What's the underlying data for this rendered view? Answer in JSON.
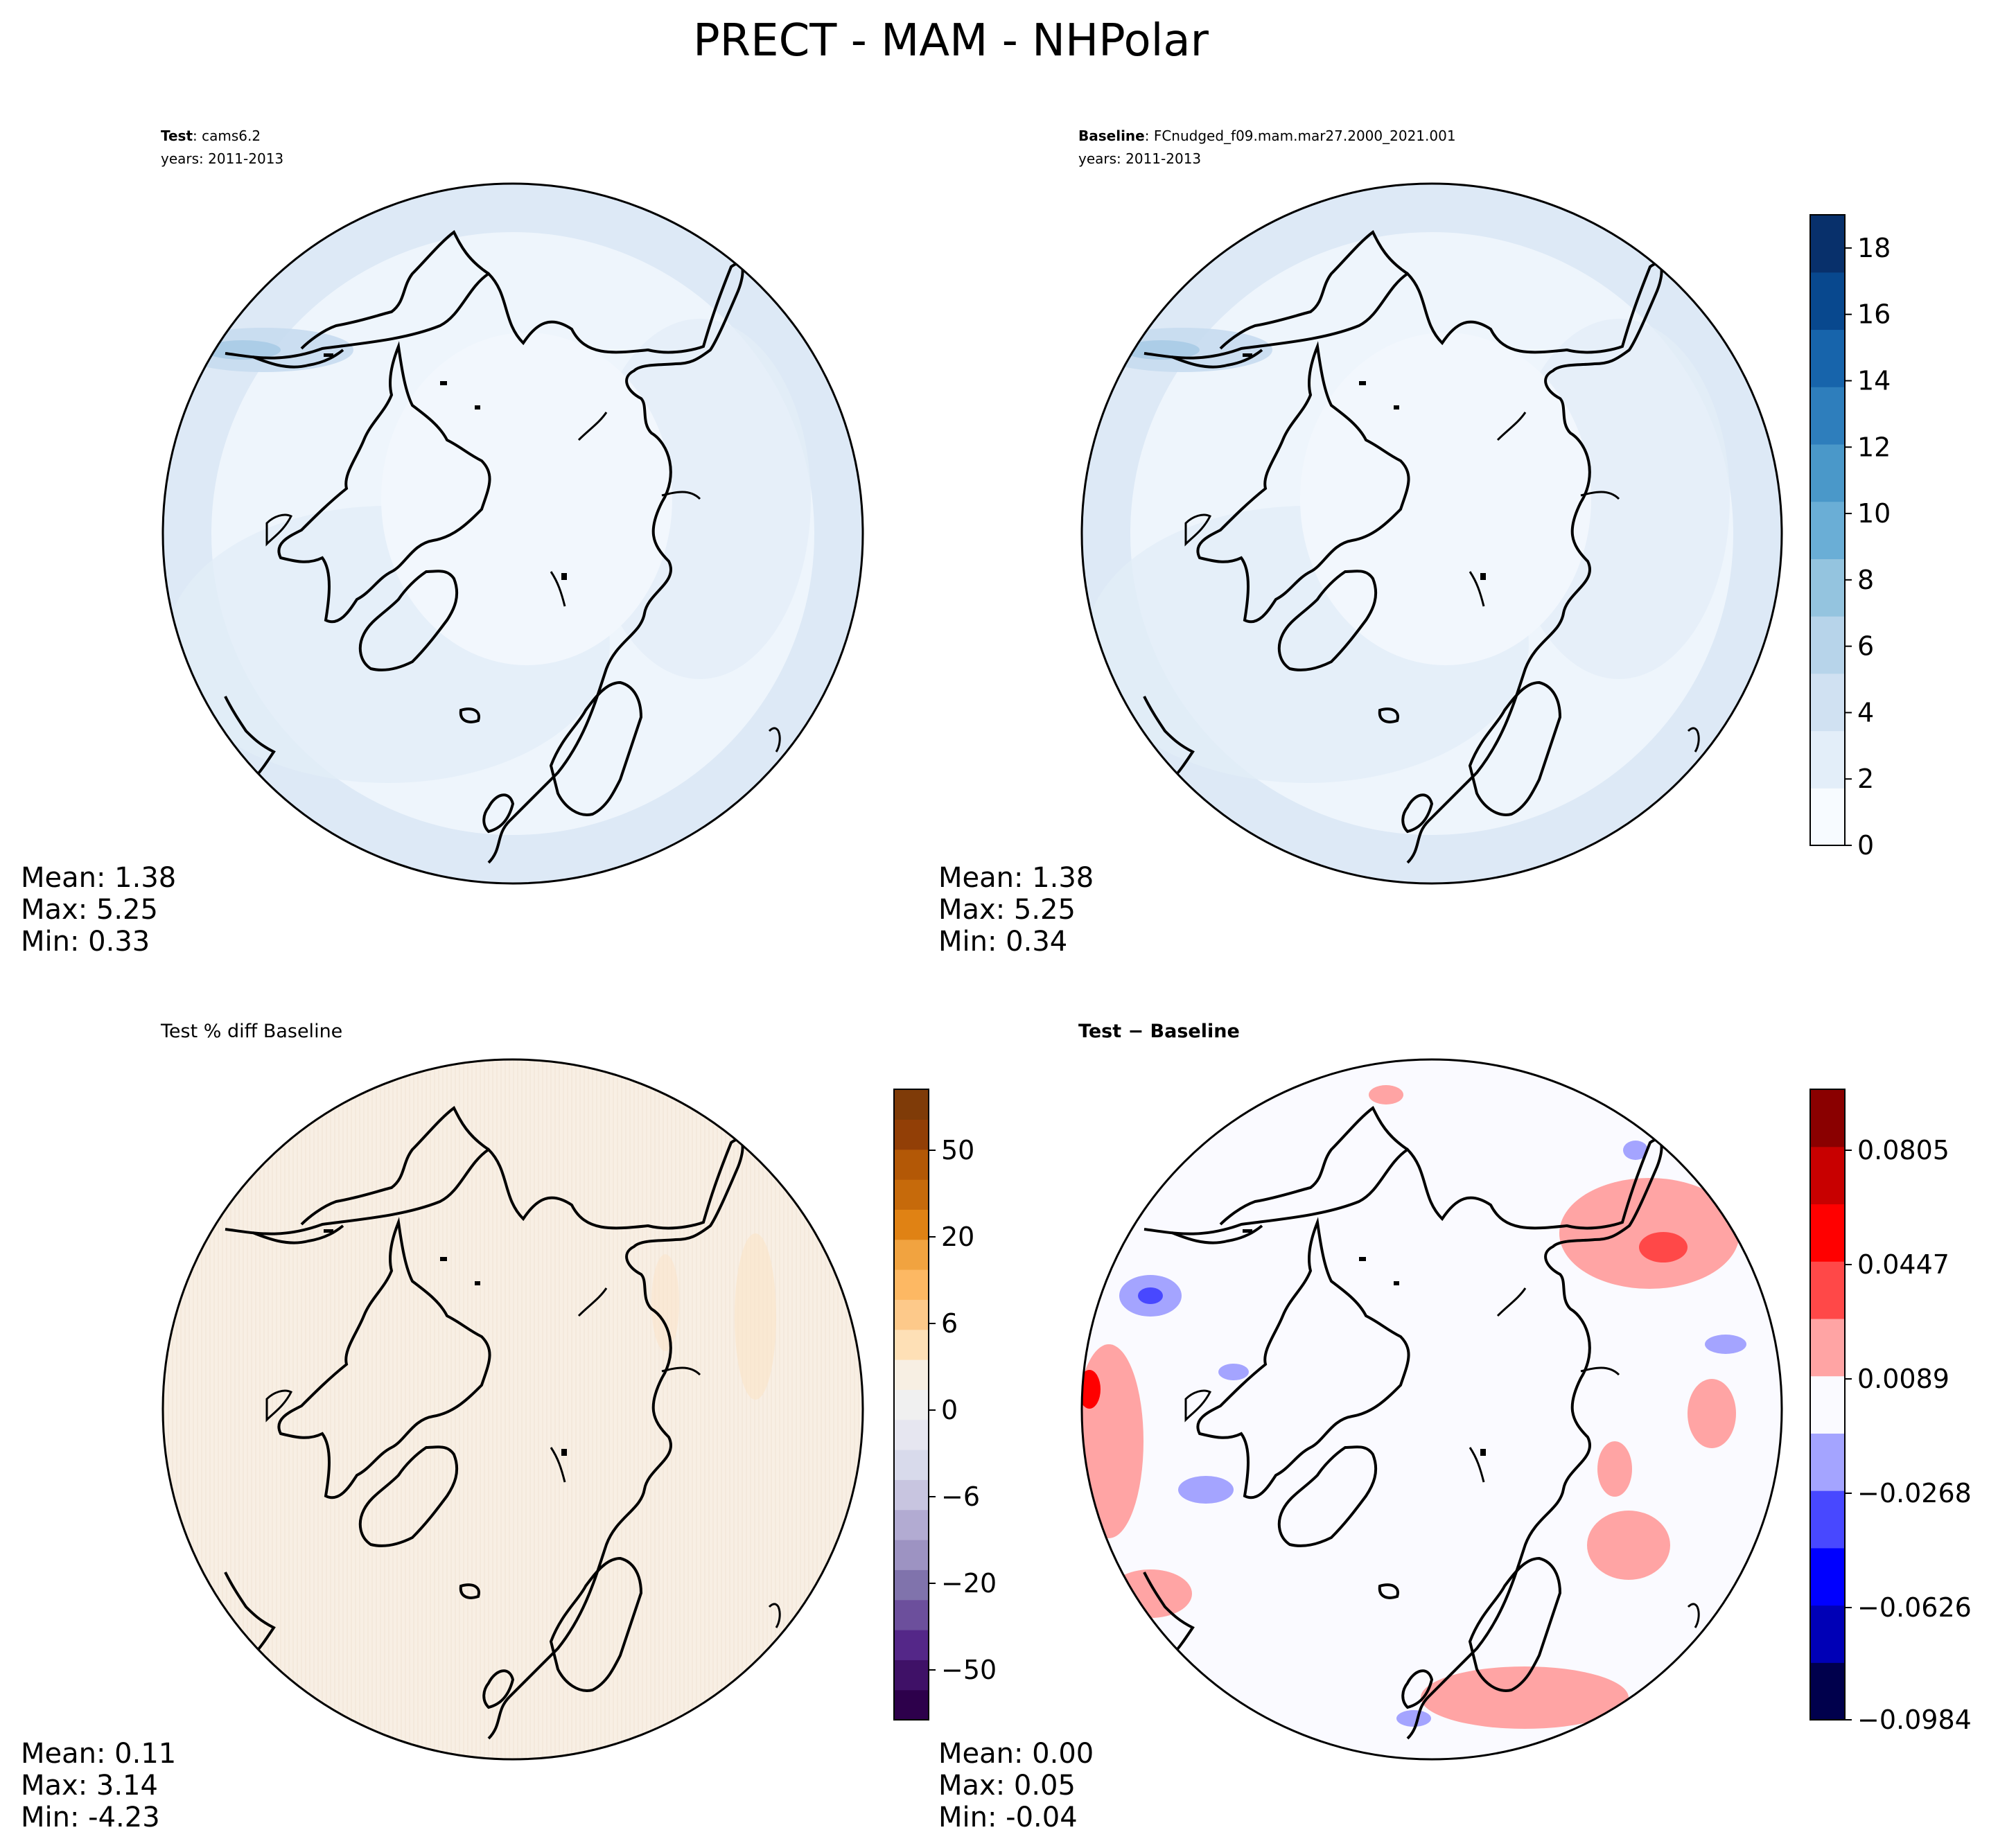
{
  "figure": {
    "title": "PRECT - MAM - NHPolar"
  },
  "panels": [
    {
      "id": "test",
      "label_bold": "Test",
      "label_rest": ": cams6.2",
      "years": "years: 2011-2013",
      "stats": {
        "mean": "Mean:  1.38",
        "max": "Max:  5.25",
        "min": "Min:  0.33"
      }
    },
    {
      "id": "baseline",
      "label_bold": "Baseline",
      "label_rest": ": FCnudged_f09.mam.mar27.2000_2021.001",
      "years": "years: 2011-2013",
      "stats": {
        "mean": "Mean:  1.38",
        "max": "Max:  5.25",
        "min": "Min:  0.34"
      }
    },
    {
      "id": "pctdiff",
      "title": "Test % diff Baseline",
      "stats": {
        "mean": "Mean:  0.11",
        "max": "Max:  3.14",
        "min": "Min: -4.23"
      }
    },
    {
      "id": "diff",
      "title": "Test − Baseline",
      "stats": {
        "mean": "Mean:  0.00",
        "max": "Max:  0.05",
        "min": "Min: -0.04"
      }
    }
  ],
  "colorbars": {
    "precip": {
      "ticks": [
        "0",
        "2",
        "4",
        "6",
        "8",
        "10",
        "12",
        "14",
        "16",
        "18"
      ],
      "tick_values": [
        0,
        2,
        4,
        6,
        8,
        10,
        12,
        14,
        16,
        18
      ],
      "range": [
        0,
        19
      ],
      "colors": [
        "#f7fbff",
        "#e3eef9",
        "#d0e1f2",
        "#b7d4ea",
        "#94c4df",
        "#6aaed6",
        "#4a98c9",
        "#2e7ebc",
        "#1764ab",
        "#08488e",
        "#08306b"
      ]
    },
    "pct": {
      "ticks": [
        "50",
        "20",
        "6",
        "0",
        "−6",
        "−20",
        "−50"
      ],
      "colors": [
        "#2d004b",
        "#3f1167",
        "#542788",
        "#6c4f9c",
        "#8073ac",
        "#9d93c2",
        "#b2abd2",
        "#c8c5e0",
        "#d8daeb",
        "#e6e6f0",
        "#f0f0f0",
        "#f7efe3",
        "#fee0b6",
        "#fdc98a",
        "#fdb863",
        "#f1a340",
        "#e08214",
        "#c66a0b",
        "#b35806",
        "#923f06",
        "#7f3b08"
      ]
    },
    "diff": {
      "ticks": [
        "0.0805",
        "0.0447",
        "0.0089",
        "−0.0268",
        "−0.0626",
        "−0.0984"
      ],
      "colors": [
        "#00004c",
        "#0000b6",
        "#0000ff",
        "#4848ff",
        "#a4a4ff",
        "#fafaff",
        "#ffa4a4",
        "#ff4848",
        "#ff0000",
        "#c80000",
        "#8a0000"
      ]
    }
  },
  "chart_data": [
    {
      "type": "heatmap",
      "projection": "north-polar-stereographic",
      "title": "Test: cams6.2",
      "subtitle": "years: 2011-2013",
      "variable": "PRECT",
      "season": "MAM",
      "region": "NHPolar",
      "summary": {
        "mean": 1.38,
        "max": 5.25,
        "min": 0.33
      },
      "colorbar": "shared precip colorbar",
      "levels": [
        0,
        1,
        2,
        3,
        4,
        5,
        6,
        7,
        8,
        9,
        10,
        11,
        12,
        13,
        14,
        15,
        16,
        17,
        18,
        19
      ]
    },
    {
      "type": "heatmap",
      "projection": "north-polar-stereographic",
      "title": "Baseline: FCnudged_f09.mam.mar27.2000_2021.001",
      "subtitle": "years: 2011-2013",
      "summary": {
        "mean": 1.38,
        "max": 5.25,
        "min": 0.34
      },
      "colorbar": {
        "ticks": [
          0,
          2,
          4,
          6,
          8,
          10,
          12,
          14,
          16,
          18
        ],
        "range": [
          0,
          19
        ]
      }
    },
    {
      "type": "heatmap",
      "projection": "north-polar-stereographic",
      "title": "Test % diff Baseline",
      "summary": {
        "mean": 0.11,
        "max": 3.14,
        "min": -4.23
      },
      "colorbar": {
        "ticks": [
          50,
          20,
          6,
          0,
          -6,
          -20,
          -50
        ],
        "scale": "symmetric-nonlinear"
      }
    },
    {
      "type": "heatmap",
      "projection": "north-polar-stereographic",
      "title": "Test − Baseline",
      "summary": {
        "mean": 0.0,
        "max": 0.05,
        "min": -0.04
      },
      "colorbar": {
        "ticks": [
          0.0805,
          0.0447,
          0.0089,
          -0.0268,
          -0.0626,
          -0.0984
        ],
        "range": [
          -0.0984,
          0.0984
        ]
      }
    }
  ]
}
